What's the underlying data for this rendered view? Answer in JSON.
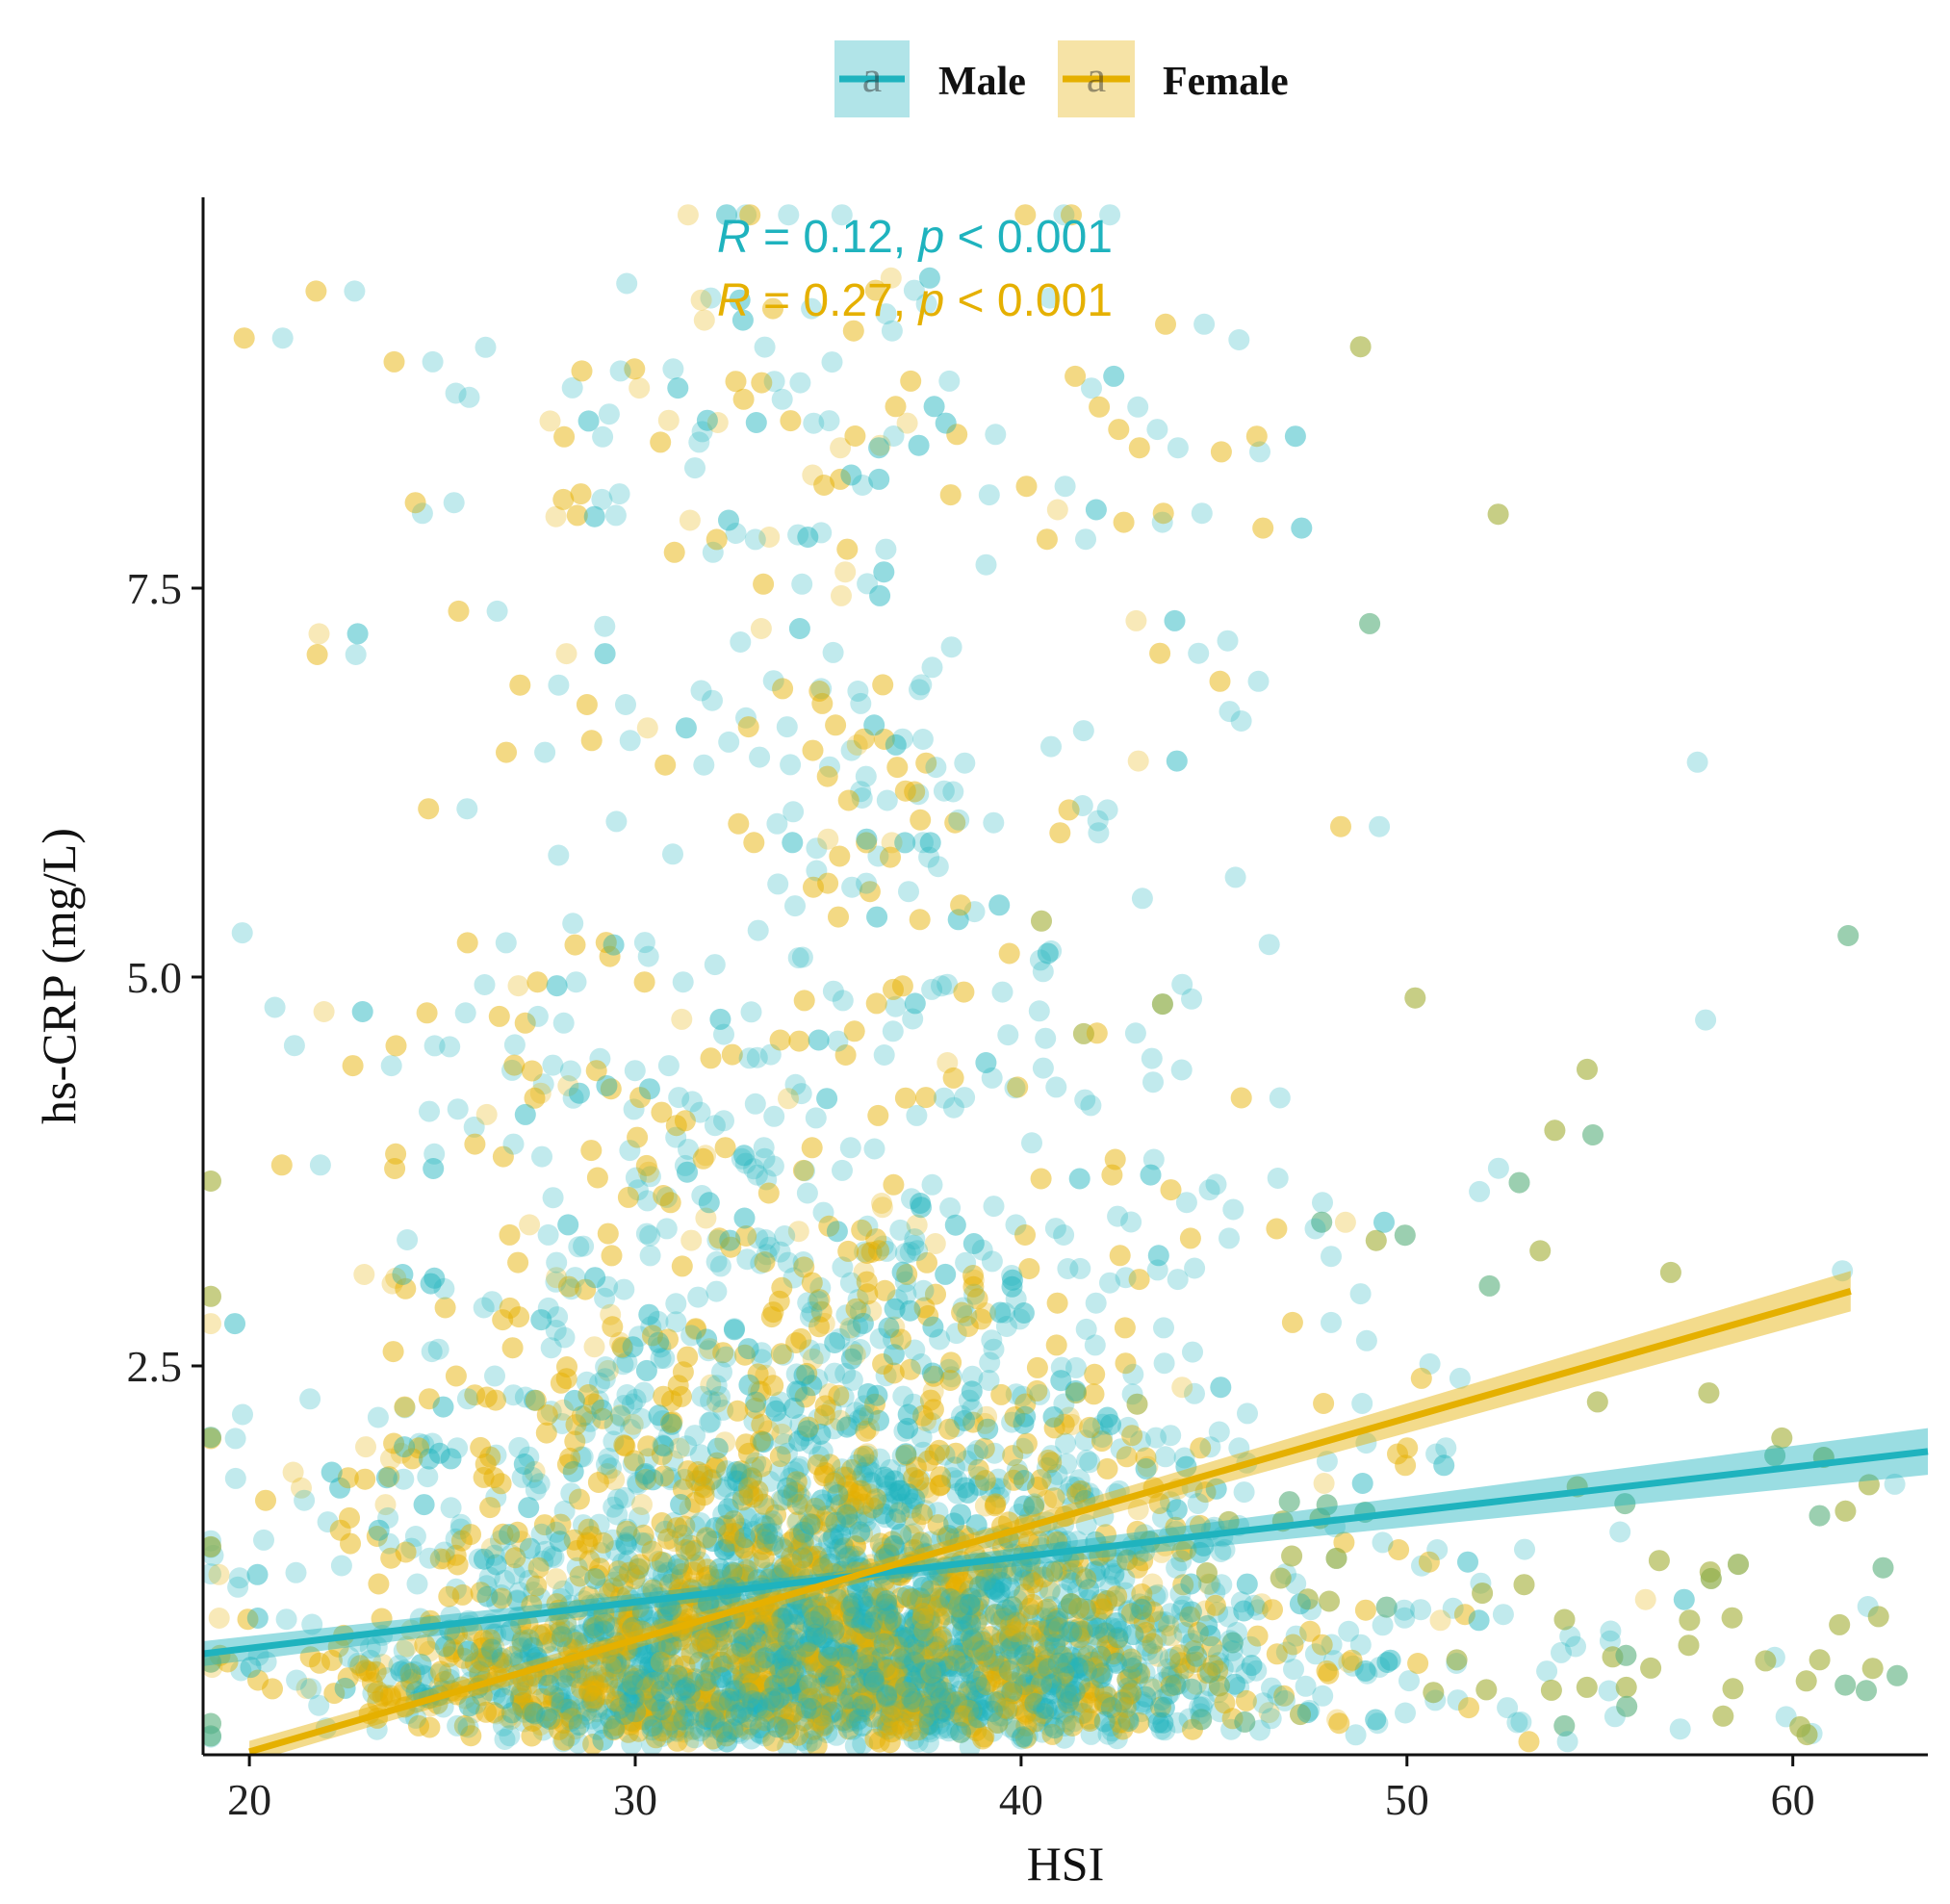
{
  "chart_data": {
    "type": "scatter",
    "xlabel": "HSI",
    "ylabel": "hs-CRP (mg/L)",
    "xlim": [
      18.8,
      63.5
    ],
    "ylim": [
      0,
      10
    ],
    "xticks": [
      20,
      30,
      40,
      50,
      60
    ],
    "yticks": [
      2.5,
      5.0,
      7.5
    ],
    "ytick_labels": [
      "2.5",
      "5.0",
      "7.5"
    ],
    "legend": {
      "placement": "top",
      "entries": [
        {
          "name": "Male",
          "color": "#1FB3BE",
          "glyph": "a"
        },
        {
          "name": "Female",
          "color": "#E5B000",
          "glyph": "a"
        }
      ]
    },
    "series": [
      {
        "name": "Male",
        "color": "#1FB3BE",
        "annotation": {
          "R": "0.12",
          "p": "0.001"
        },
        "fit": {
          "x": [
            18.8,
            63.5
          ],
          "y": [
            0.65,
            1.95
          ],
          "ci": [
            [
              18.8,
              0.57,
              0.73
            ],
            [
              35.0,
              1.09,
              1.17
            ],
            [
              63.5,
              1.8,
              2.1
            ]
          ]
        },
        "n_points": 3200,
        "center": [
          35.0,
          1.1
        ]
      },
      {
        "name": "Female",
        "color": "#E5B000",
        "annotation": {
          "R": "0.27",
          "p": "0.001"
        },
        "fit": {
          "x": [
            20.0,
            61.5
          ],
          "y": [
            0.02,
            2.98
          ],
          "ci": [
            [
              20.0,
              -0.05,
              0.09
            ],
            [
              35.0,
              1.05,
              1.15
            ],
            [
              61.5,
              2.85,
              3.11
            ]
          ]
        },
        "n_points": 3000,
        "center": [
          34.0,
          1.0
        ]
      }
    ],
    "annotations": [
      {
        "series": "Male",
        "label_R": "R",
        "eq": " = 0.12, ",
        "label_p": "p",
        "rest": " < 0.001"
      },
      {
        "series": "Female",
        "label_R": "R",
        "eq": " = 0.27, ",
        "label_p": "p",
        "rest": " < 0.001"
      }
    ]
  }
}
